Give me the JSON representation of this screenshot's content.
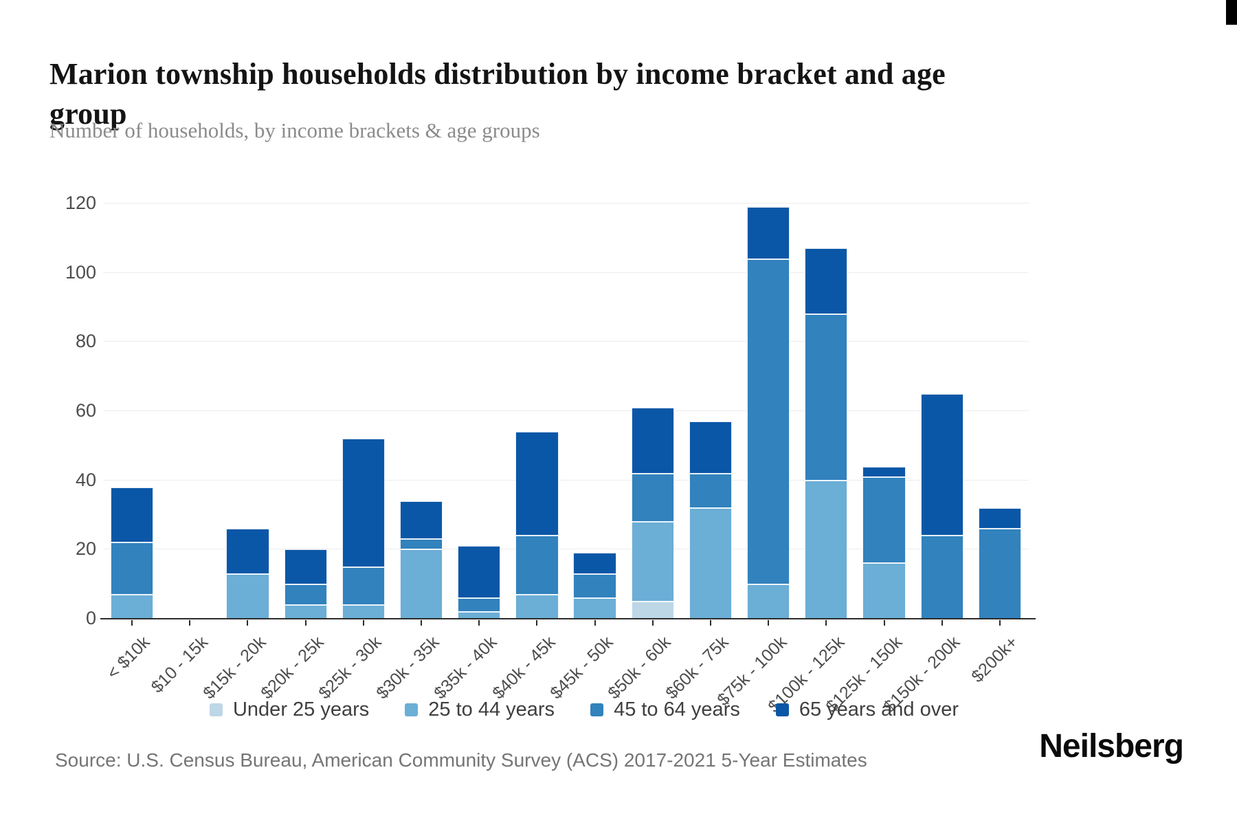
{
  "header": {
    "title": "Marion township households distribution by income bracket and age group",
    "subtitle": "Number of households, by income brackets & age groups"
  },
  "footer": {
    "source": "Source: U.S. Census Bureau, American Community Survey (ACS) 2017-2021 5-Year Estimates",
    "logo": "Neilsberg"
  },
  "chart_data": {
    "type": "bar",
    "stacked": true,
    "title": "Marion township households distribution by income bracket and age group",
    "subtitle": "Number of households, by income brackets & age groups",
    "xlabel": "",
    "ylabel": "Number of households",
    "ylim": [
      0,
      120
    ],
    "yticks": [
      0,
      20,
      40,
      60,
      80,
      100,
      120
    ],
    "grid": "horizontal",
    "legend_position": "bottom",
    "categories": [
      "< $10k",
      "$10 - 15k",
      "$15k - 20k",
      "$20k - 25k",
      "$25k - 30k",
      "$30k - 35k",
      "$35k - 40k",
      "$40k - 45k",
      "$45k - 50k",
      "$50k - 60k",
      "$60k - 75k",
      "$75k - 100k",
      "$100k - 125k",
      "$125k - 150k",
      "$150k - 200k",
      "$200k+"
    ],
    "series": [
      {
        "name": "Under 25 years",
        "color": "#bdd7e7",
        "values": [
          0,
          0,
          0,
          0,
          0,
          0,
          0,
          0,
          0,
          5,
          0,
          0,
          0,
          0,
          0,
          0
        ]
      },
      {
        "name": "25 to 44 years",
        "color": "#6baed6",
        "values": [
          7,
          0,
          13,
          4,
          4,
          20,
          2,
          7,
          6,
          23,
          32,
          10,
          40,
          16,
          0,
          0
        ]
      },
      {
        "name": "45 to 64 years",
        "color": "#3182bd",
        "values": [
          15,
          0,
          0,
          6,
          11,
          3,
          4,
          17,
          7,
          14,
          10,
          94,
          48,
          25,
          24,
          26
        ]
      },
      {
        "name": "65 years and over",
        "color": "#0b57a7",
        "values": [
          16,
          0,
          13,
          10,
          37,
          11,
          15,
          30,
          6,
          19,
          15,
          15,
          19,
          3,
          41,
          6
        ]
      }
    ],
    "totals": [
      38,
      0,
      26,
      20,
      52,
      34,
      21,
      54,
      19,
      61,
      57,
      119,
      107,
      44,
      65,
      32
    ]
  }
}
